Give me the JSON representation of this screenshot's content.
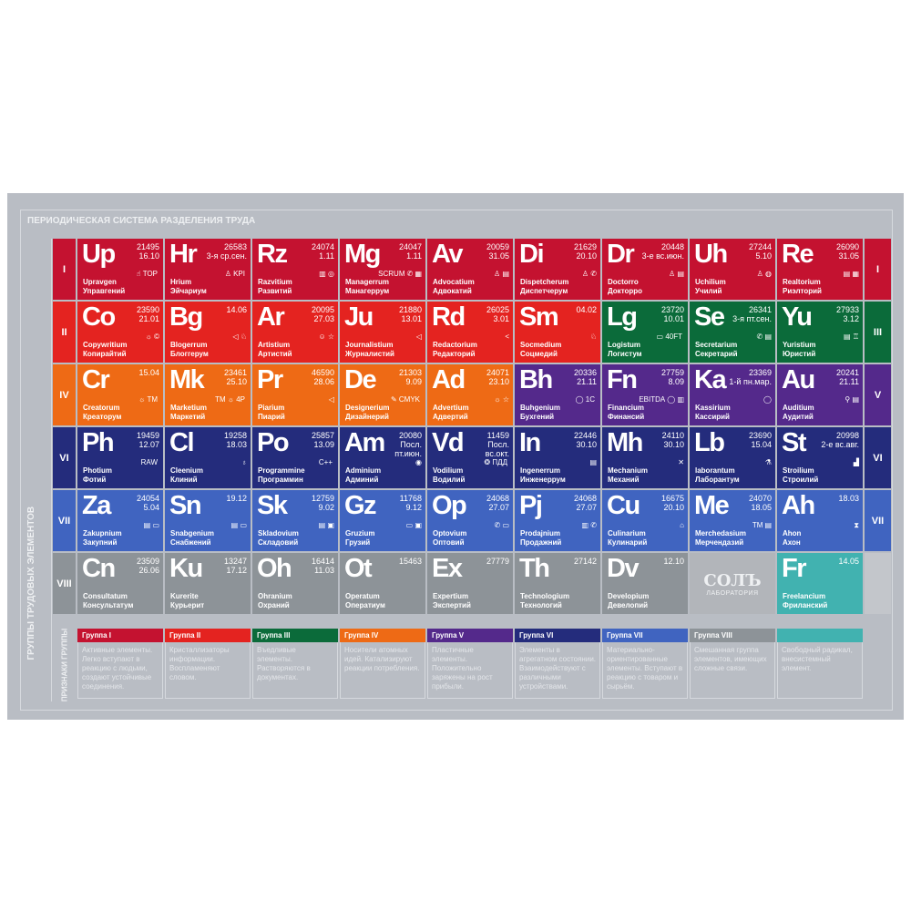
{
  "title": "ПЕРИОДИЧЕСКАЯ СИСТЕМА РАЗДЕЛЕНИЯ ТРУДА",
  "side_label": "ГРУППЫ ТРУДОВЫХ ЭЛЕМЕНТОВ",
  "legend_label": "ПРИЗНАКИ ГРУППЫ",
  "logo": {
    "line1": "СОЛЪ",
    "line2": "ЛАБОРАТОРИЯ"
  },
  "colors": {
    "g1": "#c41230",
    "g2": "#e42320",
    "g3": "#0b6b3a",
    "g4": "#ee6a15",
    "g5": "#54298b",
    "g6": "#242c7c",
    "g7": "#4064c0",
    "g8": "#8d9398",
    "teal": "#41b2b0",
    "logo_bg": "#b2b5ba"
  },
  "rows": [
    {
      "left": "I",
      "right": "I",
      "right_color": "g1",
      "left_color": "g1",
      "cells": [
        {
          "sym": "Up",
          "n": [
            "21495",
            "16.10"
          ],
          "lat": "Upravgen",
          "ru": "Управгений",
          "icons": [
            "hand",
            "TOP"
          ],
          "c": "g1"
        },
        {
          "sym": "Hr",
          "n": [
            "26583",
            "3-я ср.сен."
          ],
          "lat": "Hrium",
          "ru": "Эйчариум",
          "icons": [
            "person",
            "KPI"
          ],
          "c": "g1"
        },
        {
          "sym": "Rz",
          "n": [
            "24074",
            "1.11"
          ],
          "lat": "Razvitium",
          "ru": "Развитий",
          "icons": [
            "chart",
            "target"
          ],
          "c": "g1"
        },
        {
          "sym": "Mg",
          "n": [
            "24047",
            "1.11"
          ],
          "lat": "Managerrum",
          "ru": "Манагеррум",
          "icons": [
            "SCRUM",
            "phone",
            "calculator"
          ],
          "c": "g1"
        },
        {
          "sym": "Av",
          "n": [
            "20059",
            "31.05"
          ],
          "lat": "Advocatium",
          "ru": "Адвокатий",
          "icons": [
            "person",
            "document"
          ],
          "c": "g1"
        },
        {
          "sym": "Di",
          "n": [
            "21629",
            "20.10"
          ],
          "lat": "Dispetcherum",
          "ru": "Диспетчерум",
          "icons": [
            "person",
            "phone"
          ],
          "c": "g1"
        },
        {
          "sym": "Dr",
          "n": [
            "20448",
            "3-е вс.июн."
          ],
          "lat": "Doctorro",
          "ru": "Докторро",
          "icons": [
            "person",
            "document"
          ],
          "c": "g1"
        },
        {
          "sym": "Uh",
          "n": [
            "27244",
            "5.10"
          ],
          "lat": "Uchilium",
          "ru": "Училий",
          "icons": [
            "person",
            "globe"
          ],
          "c": "g1"
        },
        {
          "sym": "Re",
          "n": [
            "26090",
            "31.05"
          ],
          "lat": "Realtorium",
          "ru": "Риэлторий",
          "icons": [
            "document",
            "buildings"
          ],
          "c": "g1"
        }
      ]
    },
    {
      "left": "II",
      "right": "III",
      "left_color": "g2",
      "right_color": "g3",
      "cells": [
        {
          "sym": "Co",
          "n": [
            "23590",
            "21.01"
          ],
          "lat": "Copywritium",
          "ru": "Копирайтий",
          "icons": [
            "sun",
            "copyright"
          ],
          "c": "g2"
        },
        {
          "sym": "Bg",
          "n": [
            "14.06"
          ],
          "lat": "Blogerrum",
          "ru": "Блоггерум",
          "icons": [
            "megaphone",
            "like"
          ],
          "c": "g2"
        },
        {
          "sym": "Ar",
          "n": [
            "20095",
            "27.03"
          ],
          "lat": "Artistium",
          "ru": "Артистий",
          "icons": [
            "masks",
            "star"
          ],
          "c": "g2"
        },
        {
          "sym": "Ju",
          "n": [
            "21880",
            "13.01"
          ],
          "lat": "Journalistium",
          "ru": "Журналистий",
          "icons": [
            "megaphone"
          ],
          "c": "g2"
        },
        {
          "sym": "Rd",
          "n": [
            "26025",
            "3.01"
          ],
          "lat": "Redactorium",
          "ru": "Редакторий",
          "icons": [
            "share"
          ],
          "c": "g2"
        },
        {
          "sym": "Sm",
          "n": [
            "04.02"
          ],
          "lat": "Socmedium",
          "ru": "Соцмедий",
          "icons": [
            "like"
          ],
          "c": "g2"
        },
        {
          "sym": "Lg",
          "n": [
            "23720",
            "10.01"
          ],
          "lat": "Logistum",
          "ru": "Логистум",
          "icons": [
            "box",
            "40FT"
          ],
          "c": "g3"
        },
        {
          "sym": "Se",
          "n": [
            "26341",
            "3-я пт.сен."
          ],
          "lat": "Secretarium",
          "ru": "Секретарий",
          "icons": [
            "phone",
            "document"
          ],
          "c": "g3"
        },
        {
          "sym": "Yu",
          "n": [
            "27933",
            "3.12"
          ],
          "lat": "Yuristium",
          "ru": "Юристий",
          "icons": [
            "document",
            "stamp"
          ],
          "c": "g3"
        }
      ]
    },
    {
      "left": "IV",
      "right": "V",
      "left_color": "g4",
      "right_color": "g5",
      "cells": [
        {
          "sym": "Cr",
          "n": [
            "15.04"
          ],
          "lat": "Creatorum",
          "ru": "Креаторум",
          "icons": [
            "sun",
            "TM"
          ],
          "c": "g4"
        },
        {
          "sym": "Mk",
          "n": [
            "23461",
            "25.10"
          ],
          "lat": "Marketium",
          "ru": "Маркетий",
          "icons": [
            "TM",
            "sun",
            "4P"
          ],
          "c": "g4"
        },
        {
          "sym": "Pr",
          "n": [
            "46590",
            "28.06"
          ],
          "lat": "Piarium",
          "ru": "Пиарий",
          "icons": [
            "megaphone"
          ],
          "c": "g4"
        },
        {
          "sym": "De",
          "n": [
            "21303",
            "9.09"
          ],
          "lat": "Designerium",
          "ru": "Дизайнерий",
          "icons": [
            "brush",
            "CMYK"
          ],
          "c": "g4"
        },
        {
          "sym": "Ad",
          "n": [
            "24071",
            "23.10"
          ],
          "lat": "Advertium",
          "ru": "Адвертий",
          "icons": [
            "sun",
            "star"
          ],
          "c": "g4"
        },
        {
          "sym": "Bh",
          "n": [
            "20336",
            "21.11"
          ],
          "lat": "Buhgenium",
          "ru": "Бухгений",
          "icons": [
            "money",
            "1C"
          ],
          "c": "g5"
        },
        {
          "sym": "Fn",
          "n": [
            "27759",
            "8.09"
          ],
          "lat": "Financium",
          "ru": "Финансий",
          "icons": [
            "EBITDA",
            "money",
            "chart"
          ],
          "c": "g5"
        },
        {
          "sym": "Ka",
          "n": [
            "23369",
            "1-й пн.мар."
          ],
          "lat": "Kassirium",
          "ru": "Кассирий",
          "icons": [
            "money"
          ],
          "c": "g5"
        },
        {
          "sym": "Au",
          "n": [
            "20241",
            "21.11"
          ],
          "lat": "Auditium",
          "ru": "Аудитий",
          "icons": [
            "magnifier",
            "document"
          ],
          "c": "g5"
        }
      ]
    },
    {
      "left": "VI",
      "right": "VI",
      "left_color": "g6",
      "right_color": "g6",
      "cells": [
        {
          "sym": "Ph",
          "n": [
            "19459",
            "12.07"
          ],
          "lat": "Photium",
          "ru": "Фотий",
          "icons": [
            "RAW"
          ],
          "c": "g6"
        },
        {
          "sym": "Cl",
          "n": [
            "19258",
            "18.03"
          ],
          "lat": "Cleenium",
          "ru": "Клиний",
          "icons": [
            "spray"
          ],
          "c": "g6"
        },
        {
          "sym": "Po",
          "n": [
            "25857",
            "13.09"
          ],
          "lat": "Programmine",
          "ru": "Программин",
          "icons": [
            "C++"
          ],
          "c": "g6"
        },
        {
          "sym": "Am",
          "n": [
            "20080",
            "Посл.",
            "пт.июн."
          ],
          "lat": "Adminium",
          "ru": "Админий",
          "icons": [
            "at-sign"
          ],
          "c": "g6"
        },
        {
          "sym": "Vd",
          "n": [
            "11459",
            "Посл.",
            "вс.окт."
          ],
          "lat": "Vodilium",
          "ru": "Водилий",
          "icons": [
            "wheel",
            "ПДД"
          ],
          "c": "g6"
        },
        {
          "sym": "In",
          "n": [
            "22446",
            "30.10"
          ],
          "lat": "Ingenerrum",
          "ru": "Инженеррум",
          "icons": [
            "document"
          ],
          "c": "g6"
        },
        {
          "sym": "Mh",
          "n": [
            "24110",
            "30.10"
          ],
          "lat": "Mechanium",
          "ru": "Механий",
          "icons": [
            "tools"
          ],
          "c": "g6"
        },
        {
          "sym": "Lb",
          "n": [
            "23690",
            "15.04"
          ],
          "lat": "laborantum",
          "ru": "Лаборантум",
          "icons": [
            "microscope"
          ],
          "c": "g6"
        },
        {
          "sym": "St",
          "n": [
            "20998",
            "2-е вс.авг."
          ],
          "lat": "Stroilium",
          "ru": "Строилий",
          "icons": [
            "crane"
          ],
          "c": "g6"
        }
      ]
    },
    {
      "left": "VII",
      "right": "VII",
      "left_color": "g7",
      "right_color": "g7",
      "cells": [
        {
          "sym": "Za",
          "n": [
            "24054",
            "5.04"
          ],
          "lat": "Zakupnium",
          "ru": "Закупний",
          "icons": [
            "document",
            "box"
          ],
          "c": "g7"
        },
        {
          "sym": "Sn",
          "n": [
            "19.12"
          ],
          "lat": "Snabgenium",
          "ru": "Снабжений",
          "icons": [
            "document",
            "box"
          ],
          "c": "g7"
        },
        {
          "sym": "Sk",
          "n": [
            "12759",
            "9.02"
          ],
          "lat": "Skladovium",
          "ru": "Складовий",
          "icons": [
            "document",
            "cart"
          ],
          "c": "g7"
        },
        {
          "sym": "Gz",
          "n": [
            "11768",
            "9.12"
          ],
          "lat": "Gruzium",
          "ru": "Грузий",
          "icons": [
            "box",
            "cart"
          ],
          "c": "g7"
        },
        {
          "sym": "Op",
          "n": [
            "24068",
            "27.07"
          ],
          "lat": "Optovium",
          "ru": "Оптовий",
          "icons": [
            "phone",
            "box"
          ],
          "c": "g7"
        },
        {
          "sym": "Pj",
          "n": [
            "24068",
            "27.07"
          ],
          "lat": "Prodajnium",
          "ru": "Продажний",
          "icons": [
            "chart",
            "phone"
          ],
          "c": "g7"
        },
        {
          "sym": "Cu",
          "n": [
            "16675",
            "20.10"
          ],
          "lat": "Culinarium",
          "ru": "Кулинарий",
          "icons": [
            "chef-hat"
          ],
          "c": "g7"
        },
        {
          "sym": "Me",
          "n": [
            "24070",
            "18.05"
          ],
          "lat": "Merchedasium",
          "ru": "Мерчендазий",
          "icons": [
            "TM",
            "document"
          ],
          "c": "g7"
        },
        {
          "sym": "Ah",
          "n": [
            "18.03"
          ],
          "lat": "Ahon",
          "ru": "Ахон",
          "icons": [
            "hourglass"
          ],
          "c": "g7"
        }
      ]
    },
    {
      "left": "VIII",
      "right": "",
      "left_color": "g8",
      "right_color": "g8",
      "cells": [
        {
          "sym": "Cn",
          "n": [
            "23509",
            "26.06"
          ],
          "lat": "Consultatum",
          "ru": "Консультатум",
          "icons": [],
          "c": "g8"
        },
        {
          "sym": "Ku",
          "n": [
            "13247",
            "17.12"
          ],
          "lat": "Kurerite",
          "ru": "Курьерит",
          "icons": [],
          "c": "g8"
        },
        {
          "sym": "Oh",
          "n": [
            "16414",
            "11.03"
          ],
          "lat": "Ohranium",
          "ru": "Охраний",
          "icons": [],
          "c": "g8"
        },
        {
          "sym": "Ot",
          "n": [
            "15463"
          ],
          "lat": "Operatum",
          "ru": "Оператиум",
          "icons": [],
          "c": "g8"
        },
        {
          "sym": "Ex",
          "n": [
            "27779"
          ],
          "lat": "Expertium",
          "ru": "Экспертий",
          "icons": [],
          "c": "g8"
        },
        {
          "sym": "Th",
          "n": [
            "27142"
          ],
          "lat": "Technologium",
          "ru": "Технологий",
          "icons": [],
          "c": "g8"
        },
        {
          "sym": "Dv",
          "n": [
            "12.10"
          ],
          "lat": "Developium",
          "ru": "Девелопий",
          "icons": [],
          "c": "g8"
        },
        {
          "logo": true,
          "c": "logo_bg"
        },
        {
          "sym": "Fr",
          "n": [
            "14.05"
          ],
          "lat": "Freelancium",
          "ru": "Фриланский",
          "icons": [],
          "c": "teal"
        }
      ]
    }
  ],
  "legend": [
    {
      "label": "Группа I",
      "c": "g1",
      "text": "Активные элементы. Легко вступают в реакцию с людьми, создают устойчивые соединения."
    },
    {
      "label": "Группа II",
      "c": "g2",
      "text": "Кристаллизаторы информации. Воспламеняют словом."
    },
    {
      "label": "Группа III",
      "c": "g3",
      "text": "Въедливые элементы. Растворяются в документах."
    },
    {
      "label": "Группа IV",
      "c": "g4",
      "text": "Носители атомных идей. Катализируют реакции потребления."
    },
    {
      "label": "Группа V",
      "c": "g5",
      "text": "Пластичные элементы. Положительно заряжены на рост прибыли."
    },
    {
      "label": "Группа VI",
      "c": "g6",
      "text": "Элементы в агрегатном состоянии. Взаимодействуют с различными устройствами."
    },
    {
      "label": "Группа VII",
      "c": "g7",
      "text": "Материально-ориентированные элементы. Вступают в реакцию с товаром и сырьём."
    },
    {
      "label": "Группа VIII",
      "c": "g8",
      "text": "Смешанная группа элементов, имеющих сложные связи."
    },
    {
      "label": "",
      "c": "teal",
      "text": "Свободный радикал, внесистемный элемент."
    }
  ]
}
